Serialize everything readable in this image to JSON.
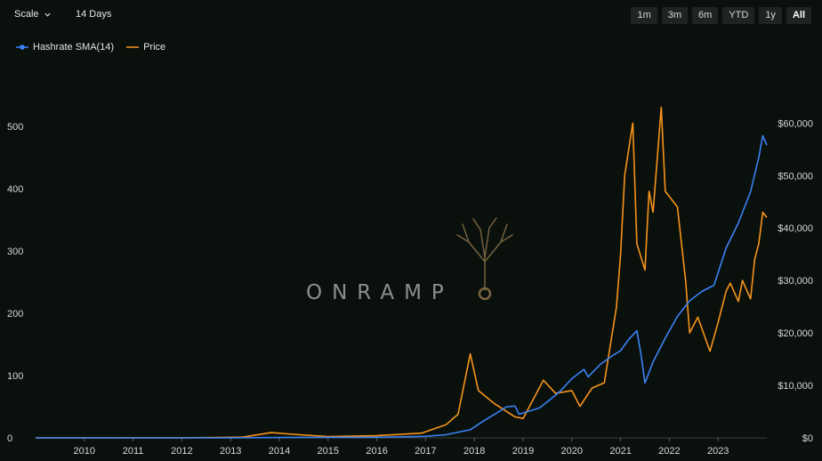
{
  "controls": {
    "scale_label": "Scale",
    "interval_label": "14 Days",
    "ranges": [
      "1m",
      "3m",
      "6m",
      "YTD",
      "1y",
      "All"
    ],
    "active_range": "All"
  },
  "watermark": {
    "text": "ONRAMP"
  },
  "chart_data": {
    "type": "line",
    "x_axis": {
      "ticks": [
        "2010",
        "2011",
        "2012",
        "2013",
        "2014",
        "2015",
        "2016",
        "2017",
        "2018",
        "2019",
        "2020",
        "2021",
        "2022",
        "2023"
      ]
    },
    "y_left": {
      "ticks": [
        "0",
        "100",
        "200",
        "300",
        "400",
        "500"
      ],
      "range": [
        0,
        560
      ]
    },
    "y_right": {
      "ticks": [
        "$0",
        "$10,000",
        "$20,000",
        "$30,000",
        "$40,000",
        "$50,000",
        "$60,000"
      ],
      "range": [
        0,
        66500
      ]
    },
    "series": [
      {
        "name": "Hashrate SMA(14)",
        "color": "#3b82f6",
        "axis": "left",
        "points": [
          [
            "2009-01",
            0
          ],
          [
            "2013-01",
            0.03
          ],
          [
            "2014-01",
            0.5
          ],
          [
            "2015-01",
            0.8
          ],
          [
            "2016-01",
            0.9
          ],
          [
            "2017-01",
            2.5
          ],
          [
            "2017-06",
            5
          ],
          [
            "2017-12",
            13
          ],
          [
            "2018-03",
            26
          ],
          [
            "2018-06",
            38
          ],
          [
            "2018-09",
            50
          ],
          [
            "2018-11",
            51
          ],
          [
            "2018-12",
            38
          ],
          [
            "2019-02",
            42
          ],
          [
            "2019-05",
            48
          ],
          [
            "2019-07",
            58
          ],
          [
            "2019-10",
            74
          ],
          [
            "2020-01",
            95
          ],
          [
            "2020-04",
            110
          ],
          [
            "2020-05",
            98
          ],
          [
            "2020-08",
            118
          ],
          [
            "2020-11",
            132
          ],
          [
            "2021-01",
            140
          ],
          [
            "2021-03",
            158
          ],
          [
            "2021-05",
            172
          ],
          [
            "2021-06",
            135
          ],
          [
            "2021-07",
            88
          ],
          [
            "2021-09",
            122
          ],
          [
            "2021-12",
            160
          ],
          [
            "2022-03",
            195
          ],
          [
            "2022-06",
            220
          ],
          [
            "2022-09",
            235
          ],
          [
            "2022-12",
            245
          ],
          [
            "2023-03",
            305
          ],
          [
            "2023-06",
            345
          ],
          [
            "2023-09",
            395
          ],
          [
            "2023-11",
            450
          ],
          [
            "2023-12",
            485
          ],
          [
            "2024-01",
            470
          ]
        ]
      },
      {
        "name": "Price",
        "color": "#f7931a",
        "axis": "right",
        "points": [
          [
            "2009-01",
            0
          ],
          [
            "2010-07",
            0.06
          ],
          [
            "2011-06",
            20
          ],
          [
            "2011-12",
            3
          ],
          [
            "2013-04",
            140
          ],
          [
            "2013-11",
            1000
          ],
          [
            "2014-06",
            600
          ],
          [
            "2015-01",
            250
          ],
          [
            "2016-01",
            400
          ],
          [
            "2016-12",
            900
          ],
          [
            "2017-06",
            2500
          ],
          [
            "2017-09",
            4500
          ],
          [
            "2017-12",
            16000
          ],
          [
            "2018-02",
            9000
          ],
          [
            "2018-06",
            6500
          ],
          [
            "2018-11",
            4000
          ],
          [
            "2019-01",
            3700
          ],
          [
            "2019-06",
            11000
          ],
          [
            "2019-09",
            8500
          ],
          [
            "2020-01",
            9000
          ],
          [
            "2020-03",
            6000
          ],
          [
            "2020-06",
            9500
          ],
          [
            "2020-09",
            10500
          ],
          [
            "2020-12",
            25000
          ],
          [
            "2021-01",
            35000
          ],
          [
            "2021-02",
            50000
          ],
          [
            "2021-04",
            60000
          ],
          [
            "2021-05",
            37000
          ],
          [
            "2021-07",
            32000
          ],
          [
            "2021-08",
            47000
          ],
          [
            "2021-09",
            43000
          ],
          [
            "2021-11",
            63000
          ],
          [
            "2021-12",
            47000
          ],
          [
            "2022-03",
            44000
          ],
          [
            "2022-05",
            30000
          ],
          [
            "2022-06",
            20000
          ],
          [
            "2022-08",
            23000
          ],
          [
            "2022-11",
            16500
          ],
          [
            "2023-01",
            22000
          ],
          [
            "2023-03",
            28000
          ],
          [
            "2023-04",
            29500
          ],
          [
            "2023-06",
            26000
          ],
          [
            "2023-07",
            30000
          ],
          [
            "2023-09",
            26500
          ],
          [
            "2023-10",
            34000
          ],
          [
            "2023-11",
            37000
          ],
          [
            "2023-12",
            43000
          ],
          [
            "2024-01",
            42000
          ]
        ]
      }
    ],
    "legend_position": "top-left",
    "grid": false
  }
}
